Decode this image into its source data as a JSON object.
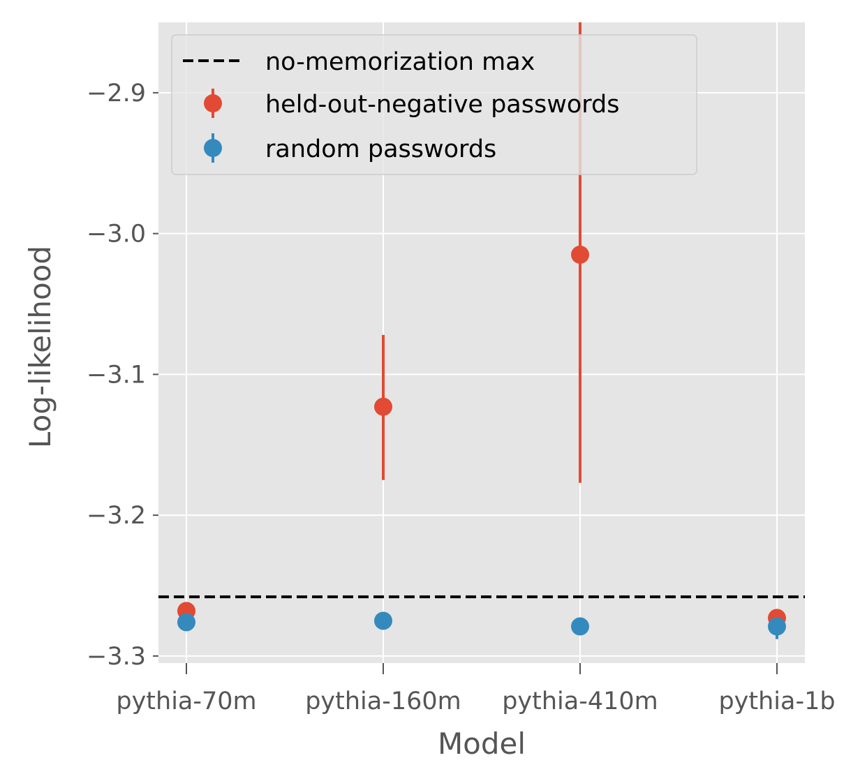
{
  "chart_data": {
    "type": "scatter",
    "xlabel": "Model",
    "ylabel": "Log-likelihood",
    "categories": [
      "pythia-70m",
      "pythia-160m",
      "pythia-410m",
      "pythia-1b"
    ],
    "ylim": [
      -3.305,
      -2.85
    ],
    "yticks": [
      -2.9,
      -3.0,
      -3.1,
      -3.2,
      -3.3
    ],
    "ytick_labels": [
      "−2.9",
      "−3.0",
      "−3.1",
      "−3.2",
      "−3.3"
    ],
    "grid": true,
    "legend_position": "top-left",
    "reference_line": {
      "name": "no-memorization max",
      "y": -3.258,
      "color": "#000000",
      "style": "dashed"
    },
    "series": [
      {
        "name": "held-out-negative passwords",
        "color": "#E24A33",
        "values": [
          -3.268,
          -3.123,
          -3.015,
          -3.273
        ],
        "err_low": [
          0.003,
          0.052,
          0.162,
          0.003
        ],
        "err_high": [
          0.003,
          0.051,
          0.165,
          0.003
        ]
      },
      {
        "name": "random passwords",
        "color": "#348ABD",
        "values": [
          -3.276,
          -3.275,
          -3.279,
          -3.279
        ],
        "err_low": [
          0.002,
          0.002,
          0.002,
          0.009
        ],
        "err_high": [
          0.002,
          0.002,
          0.002,
          0.003
        ]
      }
    ]
  }
}
